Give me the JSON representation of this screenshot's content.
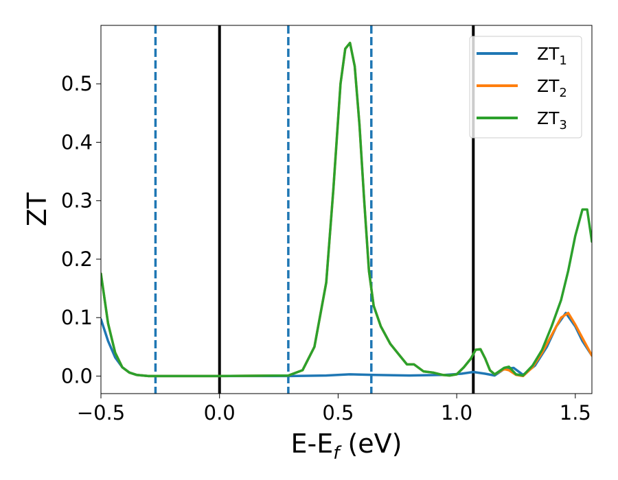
{
  "chart_data": {
    "type": "line",
    "xlabel": "E-E",
    "xlabel_sub": "f",
    "xlabel_unit": " (eV)",
    "ylabel": "ZT",
    "xlim": [
      -0.5,
      1.57
    ],
    "ylim": [
      -0.03,
      0.6
    ],
    "xticks": [
      -0.5,
      0.0,
      0.5,
      1.0,
      1.5
    ],
    "xtick_labels": [
      "−0.5",
      "0.0",
      "0.5",
      "1.0",
      "1.5"
    ],
    "yticks": [
      0.0,
      0.1,
      0.2,
      0.3,
      0.4,
      0.5
    ],
    "ytick_labels": [
      "0.0",
      "0.1",
      "0.2",
      "0.3",
      "0.4",
      "0.5"
    ],
    "grid": false,
    "legend_position": "top-right",
    "vlines": [
      {
        "x": -0.27,
        "style": "dashed",
        "color": "#1f77b4"
      },
      {
        "x": 0.0,
        "style": "solid",
        "color": "#000000"
      },
      {
        "x": 0.29,
        "style": "dashed",
        "color": "#1f77b4"
      },
      {
        "x": 0.64,
        "style": "dashed",
        "color": "#1f77b4"
      },
      {
        "x": 1.07,
        "style": "solid",
        "color": "#000000"
      }
    ],
    "series": [
      {
        "name": "ZT",
        "name_sub": "1",
        "color": "#1f77b4",
        "x": [
          -0.5,
          -0.47,
          -0.44,
          -0.41,
          -0.38,
          -0.35,
          -0.3,
          -0.2,
          0.0,
          0.3,
          0.45,
          0.55,
          0.65,
          0.8,
          0.95,
          1.02,
          1.07,
          1.12,
          1.16,
          1.2,
          1.24,
          1.28,
          1.33,
          1.38,
          1.42,
          1.46,
          1.5,
          1.53,
          1.57
        ],
        "y": [
          0.097,
          0.06,
          0.032,
          0.015,
          0.006,
          0.002,
          0.0,
          0.0,
          0.0,
          0.0,
          0.001,
          0.003,
          0.002,
          0.001,
          0.002,
          0.004,
          0.007,
          0.004,
          0.001,
          0.012,
          0.014,
          0.002,
          0.018,
          0.05,
          0.085,
          0.108,
          0.085,
          0.06,
          0.035
        ]
      },
      {
        "name": "ZT",
        "name_sub": "2",
        "color": "#ff7f0e",
        "x": [
          -0.5,
          -0.47,
          -0.44,
          -0.41,
          -0.38,
          -0.35,
          -0.3,
          -0.2,
          0.0,
          0.29,
          0.35,
          0.4,
          0.45,
          0.48,
          0.51,
          0.53,
          0.55,
          0.57,
          0.59,
          0.61,
          0.63,
          0.65,
          0.68,
          0.72,
          0.76,
          0.79,
          0.82,
          0.86,
          0.9,
          0.94,
          0.97,
          1.0,
          1.03,
          1.06,
          1.08,
          1.1,
          1.12,
          1.14,
          1.16,
          1.2,
          1.22,
          1.25,
          1.28,
          1.32,
          1.36,
          1.4,
          1.44,
          1.47,
          1.5,
          1.53,
          1.57
        ],
        "y": [
          0.175,
          0.09,
          0.04,
          0.015,
          0.006,
          0.002,
          0.0,
          0.0,
          0.0,
          0.001,
          0.01,
          0.05,
          0.16,
          0.32,
          0.5,
          0.56,
          0.57,
          0.53,
          0.43,
          0.3,
          0.18,
          0.12,
          0.085,
          0.055,
          0.035,
          0.02,
          0.02,
          0.008,
          0.006,
          0.002,
          0.001,
          0.003,
          0.015,
          0.03,
          0.045,
          0.046,
          0.03,
          0.01,
          0.003,
          0.012,
          0.01,
          0.002,
          0.0,
          0.015,
          0.04,
          0.07,
          0.1,
          0.108,
          0.088,
          0.065,
          0.035
        ]
      },
      {
        "name": "ZT",
        "name_sub": "3",
        "color": "#2ca02c",
        "x": [
          -0.5,
          -0.47,
          -0.44,
          -0.41,
          -0.38,
          -0.35,
          -0.3,
          -0.2,
          0.0,
          0.29,
          0.35,
          0.4,
          0.45,
          0.48,
          0.51,
          0.53,
          0.55,
          0.57,
          0.59,
          0.61,
          0.63,
          0.65,
          0.68,
          0.72,
          0.76,
          0.79,
          0.82,
          0.86,
          0.9,
          0.94,
          0.97,
          1.0,
          1.03,
          1.06,
          1.08,
          1.1,
          1.12,
          1.14,
          1.16,
          1.2,
          1.22,
          1.25,
          1.28,
          1.32,
          1.36,
          1.4,
          1.44,
          1.47,
          1.5,
          1.53,
          1.55,
          1.57
        ],
        "y": [
          0.175,
          0.09,
          0.04,
          0.015,
          0.006,
          0.002,
          0.0,
          0.0,
          0.0,
          0.001,
          0.01,
          0.05,
          0.16,
          0.32,
          0.5,
          0.56,
          0.57,
          0.53,
          0.43,
          0.3,
          0.18,
          0.12,
          0.085,
          0.055,
          0.035,
          0.02,
          0.02,
          0.008,
          0.006,
          0.002,
          0.001,
          0.003,
          0.015,
          0.03,
          0.045,
          0.046,
          0.03,
          0.01,
          0.003,
          0.014,
          0.016,
          0.003,
          0.001,
          0.018,
          0.045,
          0.085,
          0.13,
          0.18,
          0.24,
          0.285,
          0.285,
          0.23
        ]
      }
    ]
  }
}
